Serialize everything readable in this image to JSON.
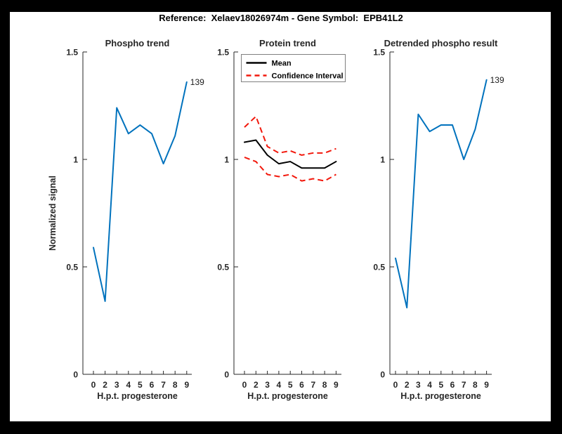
{
  "figure": {
    "title": "Reference:  Xelaev18026974m - Gene Symbol:  EPB41L2"
  },
  "colors": {
    "blue": "#0072BD",
    "red": "#F2180C",
    "black": "#000000",
    "axis": "#262626",
    "legend_border": "#808080",
    "figure_background": "#ffffff",
    "frame": "#000000"
  },
  "chart_data": [
    {
      "type": "line",
      "title": "Phospho trend",
      "xlabel": "H.p.t. progesterone",
      "ylabel": "Normalized signal",
      "x_tick_labels": [
        "0",
        "2",
        "3",
        "4",
        "5",
        "6",
        "7",
        "8",
        "9"
      ],
      "y_ticks": [
        0,
        0.5,
        1,
        1.5
      ],
      "y_tick_labels": [
        "0",
        "0.5",
        "1",
        "1.5"
      ],
      "ylim": [
        0,
        1.5
      ],
      "grid": false,
      "series": [
        {
          "name": "Phospho signal",
          "color": "blue",
          "style": "solid",
          "values": [
            0.59,
            0.34,
            1.24,
            1.12,
            1.16,
            1.12,
            0.98,
            1.11,
            1.36
          ]
        }
      ],
      "annotation": {
        "text": "139",
        "index": 8
      }
    },
    {
      "type": "line",
      "title": "Protein trend",
      "xlabel": "H.p.t. progesterone",
      "ylabel": "",
      "x_tick_labels": [
        "0",
        "2",
        "3",
        "4",
        "5",
        "6",
        "7",
        "8",
        "9"
      ],
      "y_ticks": [
        0,
        0.5,
        1,
        1.5
      ],
      "y_tick_labels": [
        "0",
        "0.5",
        "1",
        "1.5"
      ],
      "ylim": [
        0,
        1.5
      ],
      "grid": false,
      "legend": {
        "position": "northwest",
        "entries": [
          {
            "label": "Mean",
            "color": "black",
            "style": "solid"
          },
          {
            "label": "Confidence Interval",
            "color": "red",
            "style": "dashed"
          }
        ]
      },
      "series": [
        {
          "name": "Confidence Interval upper",
          "color": "red",
          "style": "dashed",
          "values": [
            1.15,
            1.2,
            1.06,
            1.03,
            1.04,
            1.02,
            1.03,
            1.03,
            1.05
          ]
        },
        {
          "name": "Confidence Interval lower",
          "color": "red",
          "style": "dashed",
          "values": [
            1.01,
            0.99,
            0.93,
            0.92,
            0.93,
            0.9,
            0.91,
            0.9,
            0.93
          ]
        },
        {
          "name": "Mean",
          "color": "black",
          "style": "solid",
          "values": [
            1.08,
            1.09,
            1.02,
            0.98,
            0.99,
            0.96,
            0.96,
            0.96,
            0.99
          ]
        }
      ]
    },
    {
      "type": "line",
      "title": "Detrended phospho result",
      "xlabel": "H.p.t. progesterone",
      "ylabel": "",
      "x_tick_labels": [
        "0",
        "2",
        "3",
        "4",
        "5",
        "6",
        "7",
        "8",
        "9"
      ],
      "y_ticks": [
        0,
        0.5,
        1,
        1.5
      ],
      "y_tick_labels": [
        "0",
        "0.5",
        "1",
        "1.5"
      ],
      "ylim": [
        0,
        1.5
      ],
      "grid": false,
      "series": [
        {
          "name": "Detrended phospho signal",
          "color": "blue",
          "style": "solid",
          "values": [
            0.54,
            0.31,
            1.21,
            1.13,
            1.16,
            1.16,
            1.0,
            1.14,
            1.37
          ]
        }
      ],
      "annotation": {
        "text": "139",
        "index": 8
      }
    }
  ]
}
